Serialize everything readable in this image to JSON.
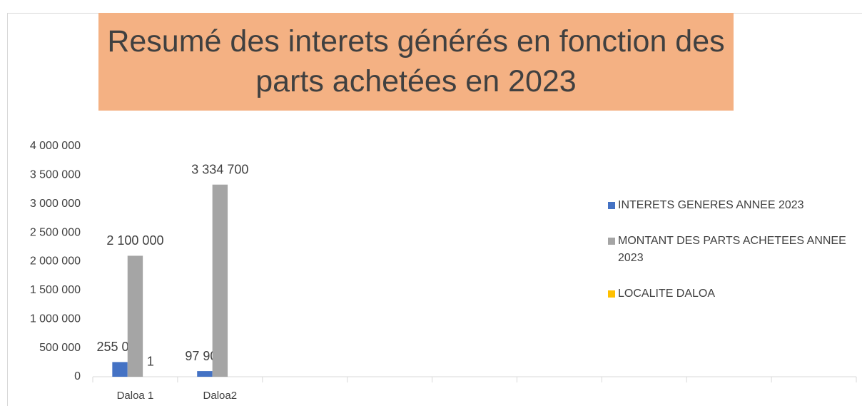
{
  "chart_data": {
    "type": "bar",
    "title": "Resumé des interets générés en fonction des parts achetées en 2023",
    "categories": [
      "Daloa 1",
      "Daloa2",
      null,
      null,
      null,
      null,
      null,
      null,
      null
    ],
    "series": [
      {
        "name": "INTERETS GENERES ANNEE 2023",
        "color": "#4472c4",
        "values": [
          255000,
          97900,
          null,
          null,
          null,
          null,
          null,
          null,
          null
        ],
        "value_labels": [
          "255 000",
          "97 900",
          null,
          null,
          null,
          null,
          null,
          null,
          null
        ]
      },
      {
        "name": "MONTANT DES PARTS ACHETEES ANNEE 2023",
        "color": "#a5a5a5",
        "values": [
          2100000,
          3334700,
          null,
          null,
          null,
          null,
          null,
          null,
          null
        ],
        "value_labels": [
          "2 100 000",
          "3 334 700",
          null,
          null,
          null,
          null,
          null,
          null,
          null
        ]
      },
      {
        "name": "LOCALITE DALOA",
        "color": "#ffc000",
        "values": [
          1,
          null,
          null,
          null,
          null,
          null,
          null,
          null,
          null
        ]
      }
    ],
    "ylim": [
      0,
      4000000
    ],
    "yticks": [
      0,
      {
        "value": 500000,
        "label": "500 000"
      },
      {
        "value": 1000000,
        "label": "1 000 000"
      },
      {
        "value": 1500000,
        "label": "1 500 000"
      },
      {
        "value": 2000000,
        "label": "2 000 000"
      },
      {
        "value": 2500000,
        "label": "2 500 000"
      },
      {
        "value": 3000000,
        "label": "3 000 000"
      },
      {
        "value": 3500000,
        "label": "3 500 000"
      },
      {
        "value": 4000000,
        "label": "4 000 000"
      }
    ],
    "grid": false,
    "legend": "right"
  }
}
